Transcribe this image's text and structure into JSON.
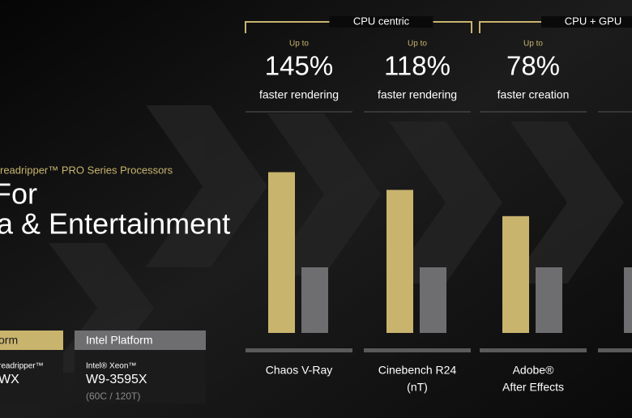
{
  "chart_data": {
    "type": "bar",
    "groups": [
      "CPU centric",
      "CPU + GPU"
    ],
    "annotations": [
      {
        "prefix": "Up to",
        "value_label": "145%",
        "caption": "faster rendering"
      },
      {
        "prefix": "Up to",
        "value_label": "118%",
        "caption": "faster rendering"
      },
      {
        "prefix": "Up to",
        "value_label": "78%",
        "caption": "faster creation"
      }
    ],
    "categories": [
      [
        "Chaos V-Ray"
      ],
      [
        "Cinebench R24",
        "(nT)"
      ],
      [
        "Adobe®",
        "After Effects"
      ]
    ],
    "series": [
      {
        "name": "Intel Platform",
        "color": "#6e6e70",
        "values": [
          100,
          100,
          100
        ],
        "details": [
          "Intel® Xeon™",
          "W9-3595X",
          "(60C / 120T)"
        ]
      },
      {
        "name": "orm",
        "color": "#c9b46e",
        "values": [
          245,
          218,
          178
        ],
        "details": [
          "readripper™",
          "WX"
        ]
      }
    ],
    "ylim": [
      0,
      250
    ]
  },
  "slide": {
    "subtitle": "readripper™ PRO Series Processors",
    "title_line1": "For",
    "title_line2": "a & Entertainment"
  }
}
